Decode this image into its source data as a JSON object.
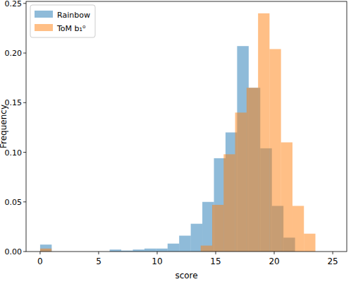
{
  "chart_data": {
    "type": "histogram",
    "x_label": "score",
    "y_label": "Frequency",
    "xlim": [
      -1.2,
      26.2
    ],
    "ylim": [
      0,
      0.252
    ],
    "xticks": [
      0,
      5,
      10,
      15,
      20,
      25
    ],
    "yticks": [
      {
        "value": 0,
        "label": "0.00"
      },
      {
        "value": 0.05,
        "label": "0.05"
      },
      {
        "value": 0.1,
        "label": "0.10"
      },
      {
        "value": 0.15,
        "label": "0.15"
      },
      {
        "value": 0.2,
        "label": "0.20"
      },
      {
        "value": 0.25,
        "label": "0.25"
      }
    ],
    "grid": false,
    "legend": "upper left",
    "series": [
      {
        "name": "Rainbow",
        "color": "#1f77b4",
        "bins": [
          0,
          0.99,
          1.98,
          2.97,
          3.96,
          4.95,
          5.94,
          6.93,
          7.92,
          8.91,
          9.9,
          10.89,
          11.88,
          12.87,
          13.86,
          14.85,
          15.84,
          16.83,
          17.82,
          18.81,
          19.8,
          20.79,
          21.78
        ],
        "values": [
          0.007,
          0,
          0,
          0,
          0,
          0,
          0.002,
          0.001,
          0.002,
          0.003,
          0.003,
          0.008,
          0.016,
          0.028,
          0.05,
          0.094,
          0.12,
          0.207,
          0.165,
          0.104,
          0.046,
          0.014
        ]
      },
      {
        "name": "ToM b₁⁰",
        "color": "#ff7f0e",
        "bins": [
          0,
          0.98,
          1.96,
          2.94,
          3.92,
          4.9,
          5.88,
          6.86,
          7.84,
          8.82,
          9.8,
          10.78,
          11.76,
          12.74,
          13.72,
          14.7,
          15.68,
          16.66,
          17.64,
          18.62,
          19.6,
          20.58,
          21.56,
          22.54,
          23.52
        ],
        "values": [
          0.003,
          0,
          0,
          0,
          0,
          0,
          0,
          0,
          0,
          0,
          0,
          0,
          0,
          0,
          0.006,
          0.047,
          0.098,
          0.14,
          0.165,
          0.24,
          0.204,
          0.11,
          0.046,
          0.018
        ]
      }
    ]
  }
}
